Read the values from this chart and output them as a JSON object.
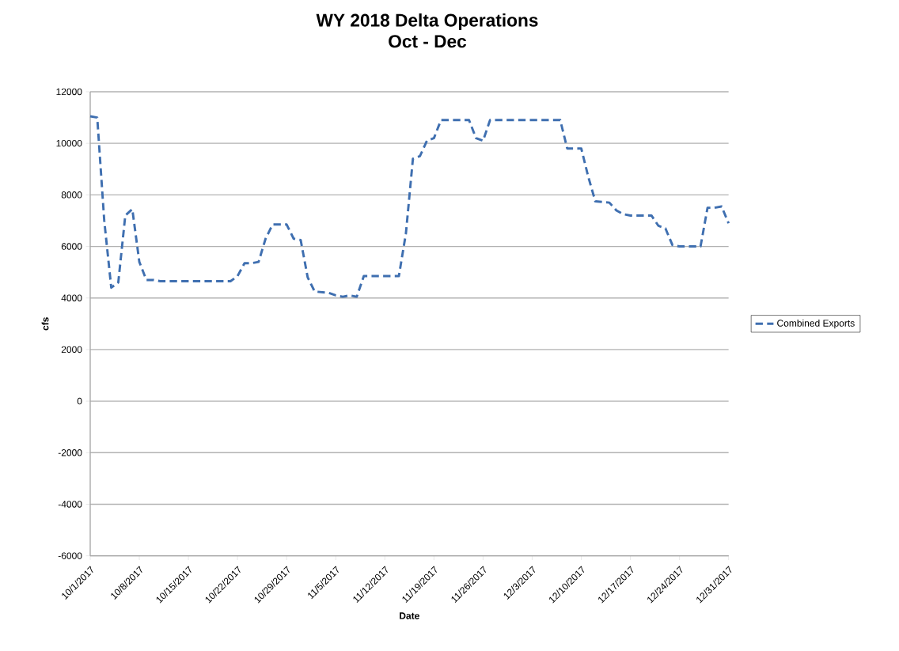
{
  "chart_data": {
    "type": "line",
    "title": "WY 2018 Delta Operations",
    "subtitle": "Oct - Dec",
    "xlabel": "Date",
    "ylabel": "cfs",
    "xlim": [
      "2017-10-01",
      "2017-12-31"
    ],
    "xticks": [
      {
        "value": "2017-10-01",
        "label": "10/1/2017"
      },
      {
        "value": "2017-10-08",
        "label": "10/8/2017"
      },
      {
        "value": "2017-10-15",
        "label": "10/15/2017"
      },
      {
        "value": "2017-10-22",
        "label": "10/22/2017"
      },
      {
        "value": "2017-10-29",
        "label": "10/29/2017"
      },
      {
        "value": "2017-11-05",
        "label": "11/5/2017"
      },
      {
        "value": "2017-11-12",
        "label": "11/12/2017"
      },
      {
        "value": "2017-11-19",
        "label": "11/19/2017"
      },
      {
        "value": "2017-11-26",
        "label": "11/26/2017"
      },
      {
        "value": "2017-12-03",
        "label": "12/3/2017"
      },
      {
        "value": "2017-12-10",
        "label": "12/10/2017"
      },
      {
        "value": "2017-12-17",
        "label": "12/17/2017"
      },
      {
        "value": "2017-12-24",
        "label": "12/24/2017"
      },
      {
        "value": "2017-12-31",
        "label": "12/31/2017"
      }
    ],
    "ylim": [
      -6000,
      12000
    ],
    "yticks": [
      -6000,
      -4000,
      -2000,
      0,
      2000,
      4000,
      6000,
      8000,
      10000,
      12000
    ],
    "grid": "y",
    "legend": "right",
    "line_style": "dashed",
    "marker": "none",
    "x": [
      "2017-10-01",
      "2017-10-02",
      "2017-10-03",
      "2017-10-04",
      "2017-10-05",
      "2017-10-06",
      "2017-10-07",
      "2017-10-08",
      "2017-10-09",
      "2017-10-10",
      "2017-10-11",
      "2017-10-21",
      "2017-10-22",
      "2017-10-23",
      "2017-10-24",
      "2017-10-25",
      "2017-10-26",
      "2017-10-27",
      "2017-10-29",
      "2017-10-30",
      "2017-10-31",
      "2017-11-01",
      "2017-11-02",
      "2017-11-04",
      "2017-11-05",
      "2017-11-06",
      "2017-11-07",
      "2017-11-08",
      "2017-11-09",
      "2017-11-14",
      "2017-11-15",
      "2017-11-16",
      "2017-11-17",
      "2017-11-18",
      "2017-11-19",
      "2017-11-20",
      "2017-11-24",
      "2017-11-25",
      "2017-11-26",
      "2017-11-27",
      "2017-12-07",
      "2017-12-08",
      "2017-12-10",
      "2017-12-11",
      "2017-12-12",
      "2017-12-14",
      "2017-12-15",
      "2017-12-16",
      "2017-12-17",
      "2017-12-20",
      "2017-12-21",
      "2017-12-22",
      "2017-12-23",
      "2017-12-24",
      "2017-12-27",
      "2017-12-28",
      "2017-12-29",
      "2017-12-30",
      "2017-12-31"
    ],
    "series": [
      {
        "name": "Combined Exports",
        "color": "#3f6fb0",
        "values": [
          11050,
          11000,
          7000,
          4400,
          4600,
          7200,
          7450,
          5400,
          4700,
          4700,
          4650,
          4650,
          4850,
          5350,
          5350,
          5400,
          6300,
          6850,
          6850,
          6300,
          6250,
          4800,
          4250,
          4200,
          4100,
          4050,
          4100,
          4050,
          4850,
          4850,
          6500,
          9400,
          9500,
          10100,
          10200,
          10900,
          10900,
          10200,
          10100,
          10900,
          10900,
          9800,
          9800,
          8700,
          7750,
          7700,
          7400,
          7250,
          7200,
          7200,
          6800,
          6700,
          6050,
          6000,
          6000,
          7500,
          7500,
          7550,
          6900
        ]
      }
    ]
  }
}
